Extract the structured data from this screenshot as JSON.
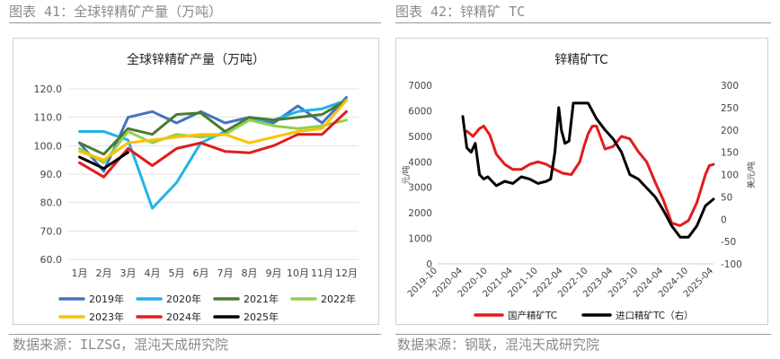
{
  "header": {
    "left_title": "图表 41：全球锌精矿产量（万吨）",
    "right_title": "图表 42：锌精矿 TC"
  },
  "footer": {
    "left_source": "数据来源：ILZSG，混沌天成研究院",
    "right_source": "数据来源：钢联，混沌天成研究院"
  },
  "chart_data": [
    {
      "type": "line",
      "title": "全球锌精矿产量（万吨）",
      "categories": [
        "1月",
        "2月",
        "3月",
        "4月",
        "5月",
        "6月",
        "7月",
        "8月",
        "9月",
        "10月",
        "11月",
        "12月"
      ],
      "ylim": [
        60,
        120
      ],
      "yticks": [
        "60.0",
        "70.0",
        "80.0",
        "90.0",
        "100.0",
        "110.0",
        "120.0"
      ],
      "ytick_values": [
        60,
        70,
        80,
        90,
        100,
        110,
        120
      ],
      "legend_position": "bottom",
      "series": [
        {
          "name": "2019年",
          "color": "#4472c4",
          "values": [
            101,
            91,
            110,
            112,
            108,
            112,
            108,
            110,
            108,
            114,
            108,
            117
          ]
        },
        {
          "name": "2020年",
          "color": "#1fb4e8",
          "values": [
            105,
            105,
            102,
            78,
            87,
            101,
            105,
            109,
            109,
            112,
            113,
            116
          ]
        },
        {
          "name": "2021年",
          "color": "#4a7a33",
          "values": [
            101,
            97,
            106,
            104,
            111,
            111.5,
            105,
            110,
            109,
            110,
            111,
            116
          ]
        },
        {
          "name": "2022年",
          "color": "#92d050",
          "values": [
            99,
            94,
            105,
            101,
            104,
            103,
            104,
            109,
            107,
            106,
            107,
            109
          ]
        },
        {
          "name": "2023年",
          "color": "#ffc000",
          "values": [
            98,
            95,
            101,
            102,
            103,
            104,
            104,
            101,
            103,
            105,
            106,
            116
          ]
        },
        {
          "name": "2024年",
          "color": "#e31a1c",
          "values": [
            94,
            89,
            99,
            93,
            99,
            101,
            98,
            97.5,
            100,
            104,
            104,
            112
          ]
        },
        {
          "name": "2025年",
          "color": "#000000",
          "values": [
            96,
            93,
            null,
            null,
            null,
            null,
            null,
            null,
            null,
            null,
            null,
            null
          ]
        }
      ],
      "series_2025_mid_feb": 92
    },
    {
      "type": "line",
      "title": "锌精矿TC",
      "x_tick_labels": [
        "2019-10",
        "2020-04",
        "2020-10",
        "2021-04",
        "2021-10",
        "2022-04",
        "2022-10",
        "2023-04",
        "2023-10",
        "2024-04",
        "2024-10",
        "2025-04"
      ],
      "y_left": {
        "label": "元/吨",
        "ylim": [
          0,
          7000
        ],
        "ticks": [
          "0",
          "1000",
          "2000",
          "3000",
          "4000",
          "5000",
          "6000",
          "7000"
        ],
        "tick_values": [
          0,
          1000,
          2000,
          3000,
          4000,
          5000,
          6000,
          7000
        ]
      },
      "y_right": {
        "label": "美元/吨",
        "ylim": [
          -100,
          300
        ],
        "ticks": [
          "-100",
          "-50",
          "0",
          "50",
          "100",
          "150",
          "200",
          "250",
          "300"
        ],
        "tick_values": [
          -100,
          -50,
          0,
          50,
          100,
          150,
          200,
          250,
          300
        ]
      },
      "legend_position": "bottom",
      "series": [
        {
          "name": "国产精矿TC",
          "axis": "left",
          "color": "#e31a1c",
          "points": [
            [
              "2020-05-01",
              5200
            ],
            [
              "2020-06-15",
              5000
            ],
            [
              "2020-08-01",
              5300
            ],
            [
              "2020-09-01",
              5400
            ],
            [
              "2020-10-15",
              5050
            ],
            [
              "2020-12-01",
              4300
            ],
            [
              "2021-02-01",
              3900
            ],
            [
              "2021-04-01",
              3700
            ],
            [
              "2021-06-01",
              3700
            ],
            [
              "2021-08-01",
              3900
            ],
            [
              "2021-10-01",
              4000
            ],
            [
              "2021-12-01",
              3900
            ],
            [
              "2022-02-01",
              3700
            ],
            [
              "2022-04-01",
              3550
            ],
            [
              "2022-06-01",
              3500
            ],
            [
              "2022-08-01",
              4000
            ],
            [
              "2022-09-01",
              4600
            ],
            [
              "2022-10-01",
              5100
            ],
            [
              "2022-11-01",
              5400
            ],
            [
              "2022-12-01",
              5400
            ],
            [
              "2023-02-01",
              4500
            ],
            [
              "2023-04-01",
              4600
            ],
            [
              "2023-06-01",
              5000
            ],
            [
              "2023-08-01",
              4900
            ],
            [
              "2023-10-01",
              4400
            ],
            [
              "2023-12-01",
              4000
            ],
            [
              "2024-02-01",
              3200
            ],
            [
              "2024-04-01",
              2500
            ],
            [
              "2024-06-01",
              1600
            ],
            [
              "2024-08-01",
              1500
            ],
            [
              "2024-10-01",
              1700
            ],
            [
              "2024-12-01",
              2400
            ],
            [
              "2025-02-01",
              3500
            ],
            [
              "2025-03-01",
              3850
            ],
            [
              "2025-04-01",
              3900
            ]
          ]
        },
        {
          "name": "进口精矿TC（右）",
          "axis": "right",
          "color": "#000000",
          "points": [
            [
              "2020-04-01",
              230
            ],
            [
              "2020-05-01",
              160
            ],
            [
              "2020-06-01",
              150
            ],
            [
              "2020-07-01",
              170
            ],
            [
              "2020-08-01",
              100
            ],
            [
              "2020-09-01",
              90
            ],
            [
              "2020-10-01",
              95
            ],
            [
              "2020-12-01",
              75
            ],
            [
              "2021-02-01",
              85
            ],
            [
              "2021-04-01",
              80
            ],
            [
              "2021-06-01",
              95
            ],
            [
              "2021-08-01",
              90
            ],
            [
              "2021-10-01",
              80
            ],
            [
              "2021-12-01",
              85
            ],
            [
              "2022-01-01",
              90
            ],
            [
              "2022-02-01",
              150
            ],
            [
              "2022-03-01",
              250
            ],
            [
              "2022-03-20",
              200
            ],
            [
              "2022-04-15",
              170
            ],
            [
              "2022-05-15",
              175
            ],
            [
              "2022-06-15",
              260
            ],
            [
              "2022-08-01",
              260
            ],
            [
              "2022-10-01",
              260
            ],
            [
              "2022-12-01",
              225
            ],
            [
              "2023-02-01",
              200
            ],
            [
              "2023-04-01",
              180
            ],
            [
              "2023-06-01",
              150
            ],
            [
              "2023-08-01",
              100
            ],
            [
              "2023-10-01",
              90
            ],
            [
              "2023-12-01",
              70
            ],
            [
              "2024-02-01",
              50
            ],
            [
              "2024-04-01",
              20
            ],
            [
              "2024-06-01",
              -15
            ],
            [
              "2024-08-01",
              -40
            ],
            [
              "2024-10-01",
              -40
            ],
            [
              "2024-12-01",
              -15
            ],
            [
              "2025-02-01",
              30
            ],
            [
              "2025-04-01",
              45
            ]
          ]
        }
      ]
    }
  ]
}
